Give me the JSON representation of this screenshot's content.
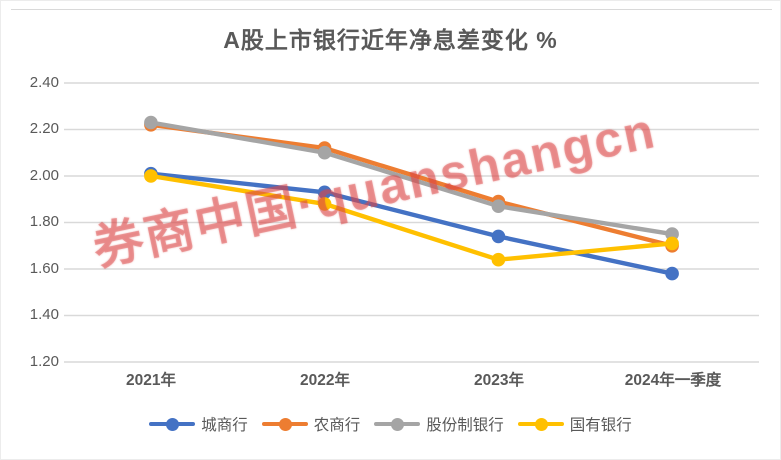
{
  "title": "A股上市银行近年净息差变化 %",
  "watermark": "券商中国·quanshangcn",
  "chart_data": {
    "type": "line",
    "title": "A股上市银行近年净息差变化 %",
    "categories": [
      "2021年",
      "2022年",
      "2023年",
      "2024年一季度"
    ],
    "series": [
      {
        "name": "城商行",
        "color": "#4472C4",
        "values": [
          2.01,
          1.93,
          1.74,
          1.58
        ]
      },
      {
        "name": "农商行",
        "color": "#ED7D31",
        "values": [
          2.22,
          2.12,
          1.89,
          1.7
        ]
      },
      {
        "name": "股份制银行",
        "color": "#A5A5A5",
        "values": [
          2.23,
          2.1,
          1.87,
          1.75
        ]
      },
      {
        "name": "国有银行",
        "color": "#FFC000",
        "values": [
          2.0,
          1.88,
          1.64,
          1.71
        ]
      }
    ],
    "xlabel": "",
    "ylabel": "",
    "ylim": [
      1.2,
      2.4
    ],
    "ytick_step": 0.2,
    "yticks": [
      "2.40",
      "2.20",
      "2.00",
      "1.80",
      "1.60",
      "1.40",
      "1.20"
    ],
    "grid": true,
    "legend_position": "bottom"
  },
  "colors": {
    "grid": "#d9d9d9",
    "text": "#595959",
    "watermark": "#db4646"
  }
}
